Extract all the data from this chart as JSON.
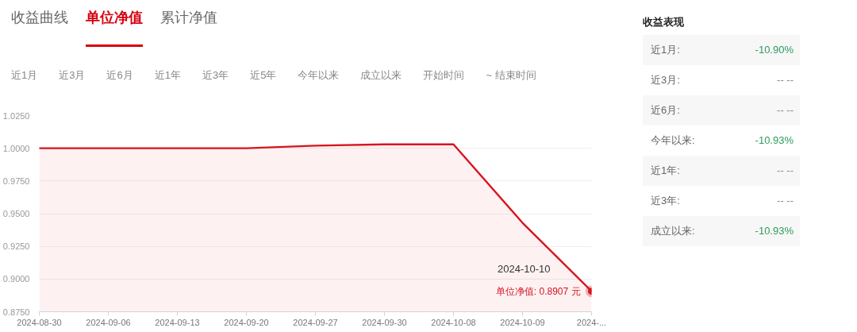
{
  "chart_data": [
    {
      "type": "area",
      "title": "单位净值",
      "categories": [
        "2024-08-30",
        "2024-09-06",
        "2024-09-13",
        "2024-09-20",
        "2024-09-27",
        "2024-09-30",
        "2024-10-08",
        "2024-10-09",
        "2024-..."
      ],
      "series": [
        {
          "color": "#d7141e",
          "values": [
            1.0,
            1.0,
            1.0,
            1.0,
            1.002,
            1.003,
            1.003,
            0.943,
            0.8907
          ]
        }
      ],
      "ylim": [
        0.875,
        1.025
      ],
      "yticks": [
        {
          "value": 0.875,
          "label": "0.8750"
        },
        {
          "value": 0.9,
          "label": "0.9000"
        },
        {
          "value": 0.925,
          "label": "0.9250"
        },
        {
          "value": 0.95,
          "label": "0.9500"
        },
        {
          "value": 0.975,
          "label": "0.9750"
        },
        {
          "value": 1.0,
          "label": "1.0000"
        },
        {
          "value": 1.025,
          "label": "1.0250"
        }
      ],
      "grid": "y",
      "annotations": [
        "收益曲线",
        "累计净值",
        "近1月",
        "近3月",
        "近6月",
        "近1年",
        "近3年",
        "近5年",
        "今年以来",
        "成立以来",
        "开始时间",
        "~ 结束时间",
        "2024-10-10",
        {
          "text": "单位净值: 0.8907 元",
          "x": "2024-...",
          "y": 0.8907
        }
      ]
    },
    {
      "type": "other",
      "title": "收益表现",
      "annotations": [
        "近1月:",
        "-10.90%",
        "近3月:",
        "-- --",
        "近6月:",
        "-- --",
        "今年以来:",
        "-10.93%",
        "近1年:",
        "-- --",
        "近3年:",
        "-- --",
        "成立以来:",
        "-10.93%"
      ]
    }
  ]
}
